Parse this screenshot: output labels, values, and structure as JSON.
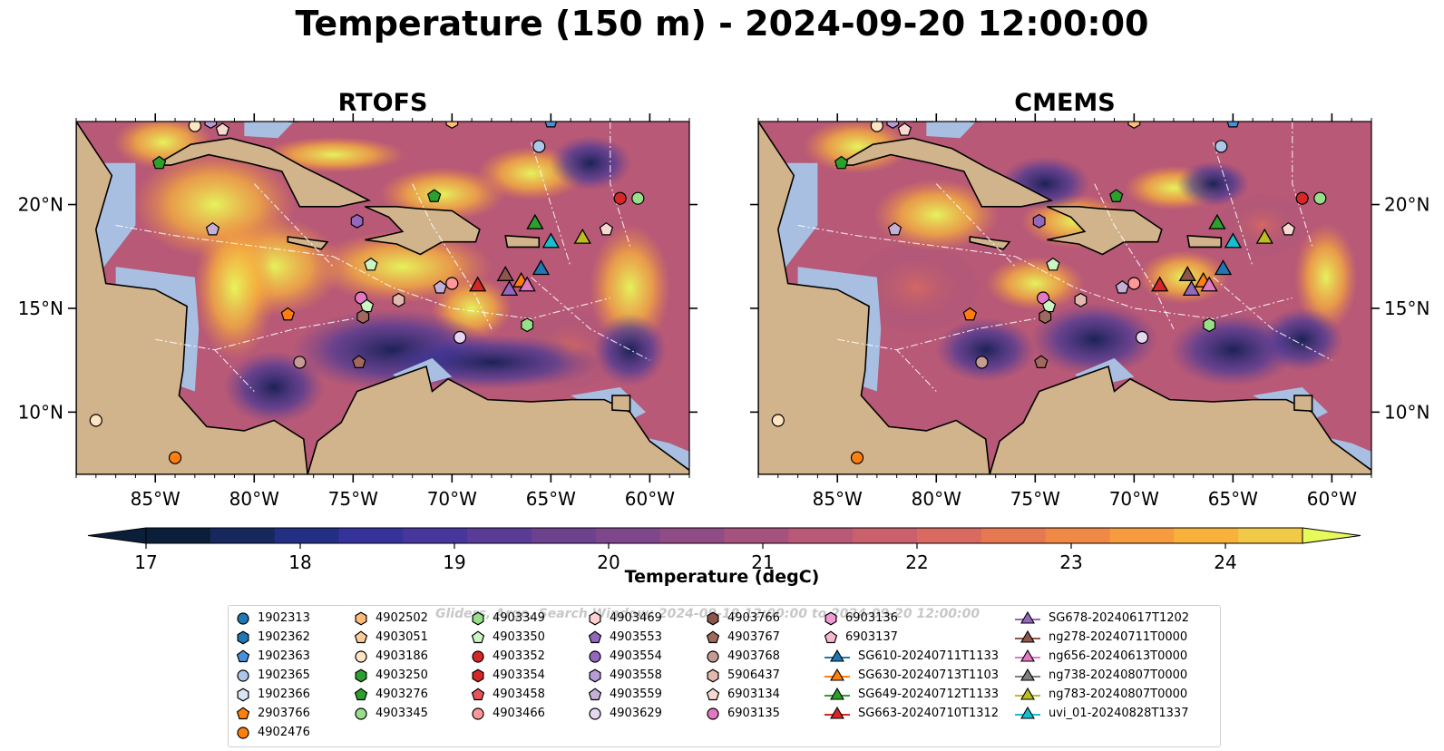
{
  "figure": {
    "title": "Temperature (150 m) - 2024-09-20 12:00:00",
    "panels": [
      {
        "title": "RTOFS"
      },
      {
        "title": "CMEMS"
      }
    ]
  },
  "axes": {
    "x_ticks": [
      "85°W",
      "80°W",
      "75°W",
      "70°W",
      "65°W",
      "60°W"
    ],
    "x_values": [
      -85,
      -80,
      -75,
      -70,
      -65,
      -60
    ],
    "y_ticks": [
      "20°N",
      "15°N",
      "10°N"
    ],
    "y_values": [
      20,
      15,
      10
    ],
    "lon_range": [
      -89,
      -58
    ],
    "lat_range": [
      7,
      24
    ]
  },
  "colorbar": {
    "label": "Temperature (degC)",
    "ticks": [
      "17",
      "18",
      "19",
      "20",
      "21",
      "22",
      "23",
      "24"
    ],
    "min": 17,
    "max": 24.5,
    "step": 0.5,
    "colors": [
      "#0b1f3a",
      "#17285f",
      "#232f83",
      "#35339a",
      "#47379c",
      "#5a3c96",
      "#6c428f",
      "#7f478b",
      "#924c85",
      "#a5527f",
      "#b75977",
      "#c9606c",
      "#d96a5f",
      "#e67951",
      "#f08946",
      "#f69c3e",
      "#f8b23c",
      "#f2c847"
    ],
    "extend_low": "#0b1f3a",
    "extend_high": "#e8fa5b"
  },
  "colors": {
    "land": "#d2b48c",
    "shelf": "#a8bfe2",
    "deep_pacific": "#0f2236"
  },
  "watermark": "Gliders, Argo, Search Window: 2024-09-19 12:00:00 to 2024-09-20 12:00:00",
  "legend": [
    [
      {
        "label": "1902313",
        "marker": "circle",
        "color": "#1f77b4"
      },
      {
        "label": "1902362",
        "marker": "hexagon",
        "color": "#1f77b4"
      },
      {
        "label": "1902363",
        "marker": "pentagon",
        "color": "#4a90d9"
      },
      {
        "label": "1902365",
        "marker": "circle",
        "color": "#aec7e8"
      },
      {
        "label": "1902366",
        "marker": "hexagon",
        "color": "#d6e6f5"
      },
      {
        "label": "2903766",
        "marker": "pentagon",
        "color": "#ff7f0e"
      },
      {
        "label": "4902476",
        "marker": "circle",
        "color": "#ff7f0e"
      }
    ],
    [
      {
        "label": "4902502",
        "marker": "hexagon",
        "color": "#ffbb78"
      },
      {
        "label": "4903051",
        "marker": "pentagon",
        "color": "#ffcc99"
      },
      {
        "label": "4903186",
        "marker": "circle",
        "color": "#ffe4c4"
      },
      {
        "label": "4903250",
        "marker": "hexagon",
        "color": "#2ca02c"
      },
      {
        "label": "4903276",
        "marker": "pentagon",
        "color": "#2ca02c"
      },
      {
        "label": "4903345",
        "marker": "circle",
        "color": "#98df8a"
      }
    ],
    [
      {
        "label": "4903349",
        "marker": "hexagon",
        "color": "#98df8a"
      },
      {
        "label": "4903350",
        "marker": "pentagon",
        "color": "#ccf5c4"
      },
      {
        "label": "4903352",
        "marker": "circle",
        "color": "#d62728"
      },
      {
        "label": "4903354",
        "marker": "hexagon",
        "color": "#d62728"
      },
      {
        "label": "4903458",
        "marker": "pentagon",
        "color": "#e7545a"
      },
      {
        "label": "4903466",
        "marker": "circle",
        "color": "#ff9896"
      }
    ],
    [
      {
        "label": "4903469",
        "marker": "hexagon",
        "color": "#ffd1d0"
      },
      {
        "label": "4903553",
        "marker": "pentagon",
        "color": "#9467bd"
      },
      {
        "label": "4903554",
        "marker": "circle",
        "color": "#9467bd"
      },
      {
        "label": "4903558",
        "marker": "hexagon",
        "color": "#b89bd6"
      },
      {
        "label": "4903559",
        "marker": "pentagon",
        "color": "#c5b0d5"
      },
      {
        "label": "4903629",
        "marker": "circle",
        "color": "#e5d7f2"
      }
    ],
    [
      {
        "label": "4903766",
        "marker": "hexagon",
        "color": "#8c564b"
      },
      {
        "label": "4903767",
        "marker": "pentagon",
        "color": "#a0695d"
      },
      {
        "label": "4903768",
        "marker": "circle",
        "color": "#c49c94"
      },
      {
        "label": "5906437",
        "marker": "hexagon",
        "color": "#e3b9ae"
      },
      {
        "label": "6903134",
        "marker": "pentagon",
        "color": "#f7d9cf"
      },
      {
        "label": "6903135",
        "marker": "circle",
        "color": "#e377c2"
      }
    ],
    [
      {
        "label": "6903136",
        "marker": "hexagon",
        "color": "#f09ad6"
      },
      {
        "label": "6903137",
        "marker": "pentagon",
        "color": "#f7b6d2"
      },
      {
        "label": "SG610-20240711T1133",
        "marker": "triangle-line",
        "color": "#1f77b4"
      },
      {
        "label": "SG630-20240713T1103",
        "marker": "triangle-line",
        "color": "#ff7f0e"
      },
      {
        "label": "SG649-20240712T1133",
        "marker": "triangle-line",
        "color": "#2ca02c"
      },
      {
        "label": "SG663-20240710T1312",
        "marker": "triangle-line",
        "color": "#d62728"
      }
    ],
    [
      {
        "label": "SG678-20240617T1202",
        "marker": "triangle-line",
        "color": "#9467bd"
      },
      {
        "label": "ng278-20240711T0000",
        "marker": "triangle-line",
        "color": "#8c564b"
      },
      {
        "label": "ng656-20240613T0000",
        "marker": "triangle-line",
        "color": "#e377c2"
      },
      {
        "label": "ng738-20240807T0000",
        "marker": "triangle-line",
        "color": "#7f7f7f"
      },
      {
        "label": "ng783-20240807T0000",
        "marker": "triangle-line",
        "color": "#bcbd22"
      },
      {
        "label": "uvi_01-20240828T1337",
        "marker": "triangle-line",
        "color": "#17becf"
      }
    ]
  ],
  "floats": [
    {
      "shape": "circle",
      "color": "#aec7e8",
      "lon": -65.6,
      "lat": 22.8
    },
    {
      "shape": "pentagon",
      "color": "#4a90d9",
      "lon": -65.0,
      "lat": 24.0
    },
    {
      "shape": "hexagon",
      "color": "#ffbb78",
      "lon": -70.0,
      "lat": 24.0
    },
    {
      "shape": "pentagon",
      "color": "#2ca02c",
      "lon": -84.8,
      "lat": 22.0
    },
    {
      "shape": "circle",
      "color": "#ffe4c4",
      "lon": -83.0,
      "lat": 23.8
    },
    {
      "shape": "pentagon",
      "color": "#f7d9cf",
      "lon": -81.6,
      "lat": 23.6
    },
    {
      "shape": "hexagon",
      "color": "#b89bd6",
      "lon": -82.2,
      "lat": 24.0
    },
    {
      "shape": "circle",
      "color": "#d62728",
      "lon": -61.5,
      "lat": 20.3
    },
    {
      "shape": "circle",
      "color": "#98df8a",
      "lon": -60.6,
      "lat": 20.3
    },
    {
      "shape": "pentagon",
      "color": "#2ca02c",
      "lon": -70.9,
      "lat": 20.4
    },
    {
      "shape": "pentagon",
      "color": "#c5b0d5",
      "lon": -82.1,
      "lat": 18.8
    },
    {
      "shape": "hexagon",
      "color": "#9467bd",
      "lon": -74.8,
      "lat": 19.2
    },
    {
      "shape": "pentagon",
      "color": "#f7d9cf",
      "lon": -62.2,
      "lat": 18.8
    },
    {
      "shape": "pentagon",
      "color": "#ccf5c4",
      "lon": -74.1,
      "lat": 17.1
    },
    {
      "shape": "hexagon",
      "color": "#e3b9ae",
      "lon": -72.7,
      "lat": 15.4
    },
    {
      "shape": "pentagon",
      "color": "#c5b0d5",
      "lon": -70.6,
      "lat": 16.0
    },
    {
      "shape": "circle",
      "color": "#ff9896",
      "lon": -70.0,
      "lat": 16.2
    },
    {
      "shape": "circle",
      "color": "#e377c2",
      "lon": -74.6,
      "lat": 15.5
    },
    {
      "shape": "pentagon",
      "color": "#ccf5c4",
      "lon": -74.3,
      "lat": 15.1
    },
    {
      "shape": "hexagon",
      "color": "#a0695d",
      "lon": -74.5,
      "lat": 14.6
    },
    {
      "shape": "pentagon",
      "color": "#ff7f0e",
      "lon": -78.3,
      "lat": 14.7
    },
    {
      "shape": "circle",
      "color": "#c49c94",
      "lon": -77.7,
      "lat": 12.4
    },
    {
      "shape": "pentagon",
      "color": "#a0695d",
      "lon": -74.7,
      "lat": 12.4
    },
    {
      "shape": "circle",
      "color": "#e5d7f2",
      "lon": -69.6,
      "lat": 13.6
    },
    {
      "shape": "hexagon",
      "color": "#98df8a",
      "lon": -66.2,
      "lat": 14.2
    },
    {
      "shape": "circle",
      "color": "#ffe4c4",
      "lon": -88.0,
      "lat": 9.6
    },
    {
      "shape": "circle",
      "color": "#ff7f0e",
      "lon": -84.0,
      "lat": 7.8
    }
  ],
  "gliders": [
    {
      "color": "#2ca02c",
      "lon": -65.8,
      "lat": 19.1
    },
    {
      "color": "#17becf",
      "lon": -65.0,
      "lat": 18.2
    },
    {
      "color": "#bcbd22",
      "lon": -63.4,
      "lat": 18.4
    },
    {
      "color": "#d62728",
      "lon": -68.7,
      "lat": 16.1
    },
    {
      "color": "#8c564b",
      "lon": -67.3,
      "lat": 16.6
    },
    {
      "color": "#9467bd",
      "lon": -67.1,
      "lat": 15.9
    },
    {
      "color": "#ff7f0e",
      "lon": -66.5,
      "lat": 16.3
    },
    {
      "color": "#e377c2",
      "lon": -66.2,
      "lat": 16.1
    },
    {
      "color": "#1f77b4",
      "lon": -65.5,
      "lat": 16.9
    }
  ]
}
